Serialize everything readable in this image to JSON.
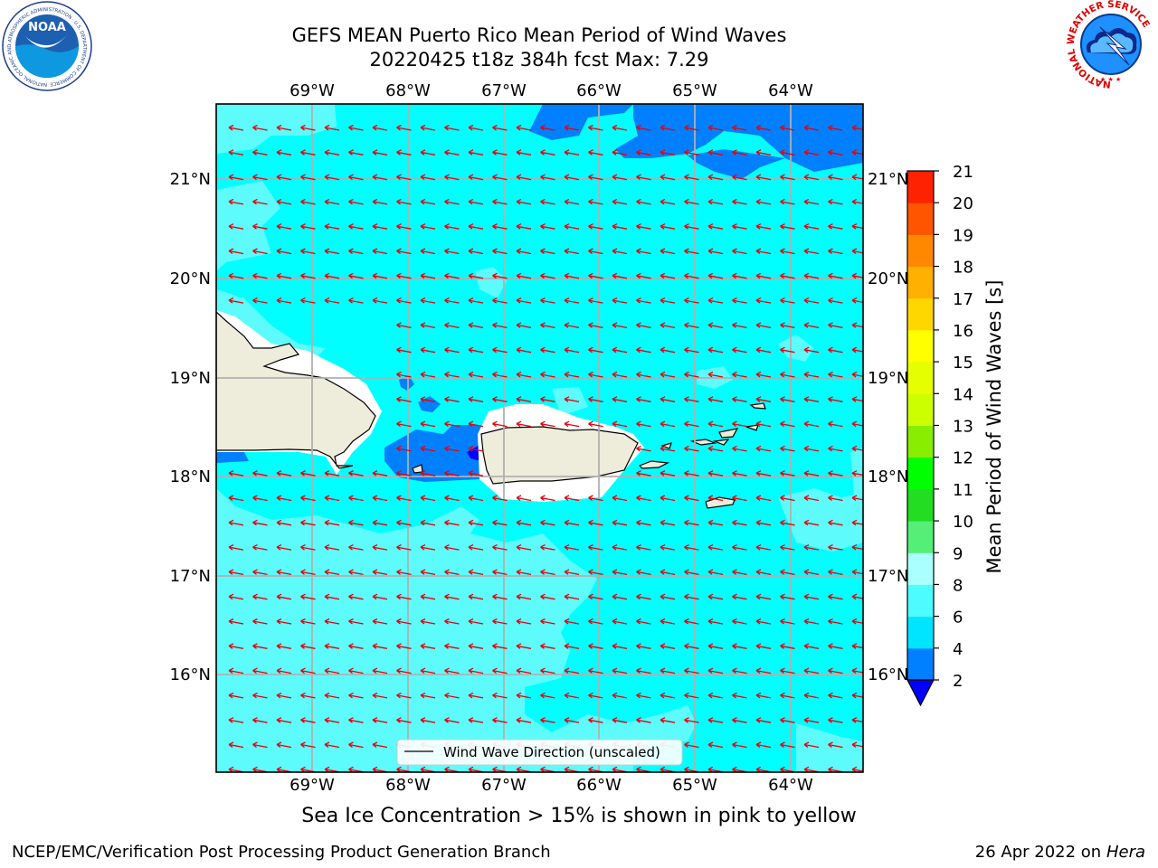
{
  "header": {
    "title_line1": "GEFS MEAN Puerto Rico Mean Period of Wind Waves",
    "title_line2": "20220425 t18z 384h fcst   Max: 7.29",
    "noaa_logo_text": "NOAA",
    "noaa_ring_text": "NATIONAL OCEANIC AND ATMOSPHERIC ADMINISTRATION · U.S. DEPARTMENT OF COMMERCE",
    "nws_ring_text": "NATIONAL WEATHER SERVICE"
  },
  "map": {
    "lon_labels": [
      "69°W",
      "68°W",
      "67°W",
      "66°W",
      "65°W",
      "64°W"
    ],
    "lat_labels": [
      "21°N",
      "20°N",
      "19°N",
      "18°N",
      "17°N",
      "16°N"
    ],
    "field": "Mean Period of Wind Waves",
    "max_value": 7.29,
    "arrow_color": "#e8000b",
    "legend_label": "Wind Wave Direction (unscaled)"
  },
  "colorbar": {
    "label": "Mean Period of Wind Waves [s]",
    "ticks": [
      "2",
      "4",
      "6",
      "8",
      "9",
      "10",
      "11",
      "12",
      "13",
      "14",
      "15",
      "16",
      "17",
      "18",
      "19",
      "20",
      "21"
    ],
    "colors": [
      "#0080ff",
      "#00e5ff",
      "#4cfcff",
      "#aaffff",
      "#55ee77",
      "#22dd22",
      "#00ff00",
      "#88ee00",
      "#ccff00",
      "#e5ff00",
      "#ffff00",
      "#ffd700",
      "#ffb000",
      "#ff8800",
      "#ff5500",
      "#ff2200"
    ],
    "under_color": "#0000ff"
  },
  "footer": {
    "note": "Sea Ice Concentration > 15% is shown in pink to yellow",
    "left": "NCEP/EMC/Verification Post Processing Product Generation Branch",
    "right_prefix": "26 Apr 2022 on ",
    "right_host": "Hera"
  }
}
